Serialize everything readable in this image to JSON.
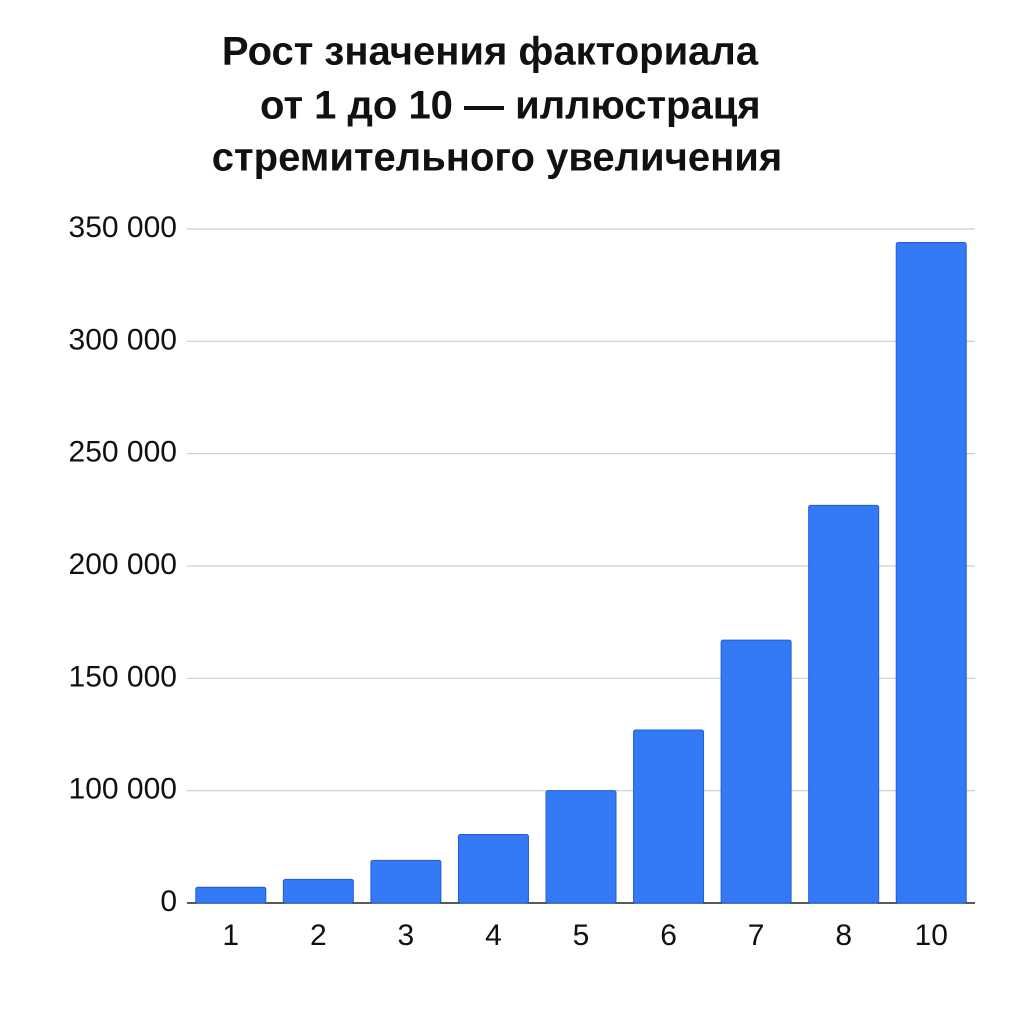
{
  "chart_data": {
    "type": "bar",
    "title": [
      "Рост значения факториала",
      "от 1 до 10 — иллюстраця",
      "стремительного увеличения"
    ],
    "categories": [
      "1",
      "2",
      "3",
      "4",
      "5",
      "6",
      "7",
      "8",
      "10"
    ],
    "values": [
      14000,
      21000,
      38000,
      61000,
      100000,
      127000,
      167000,
      227000,
      344000
    ],
    "color": "#3479f6",
    "ylim": [
      0,
      350000
    ],
    "yticks": [
      0,
      {
        "value": 100000,
        "label": "100 000"
      },
      {
        "value": 150000,
        "label": "150 000"
      },
      {
        "value": 200000,
        "label": "200 000"
      },
      {
        "value": 250000,
        "label": "250 000"
      },
      {
        "value": 300000,
        "label": "300 000"
      },
      {
        "value": 350000,
        "label": "350 000"
      }
    ],
    "grid": true
  }
}
